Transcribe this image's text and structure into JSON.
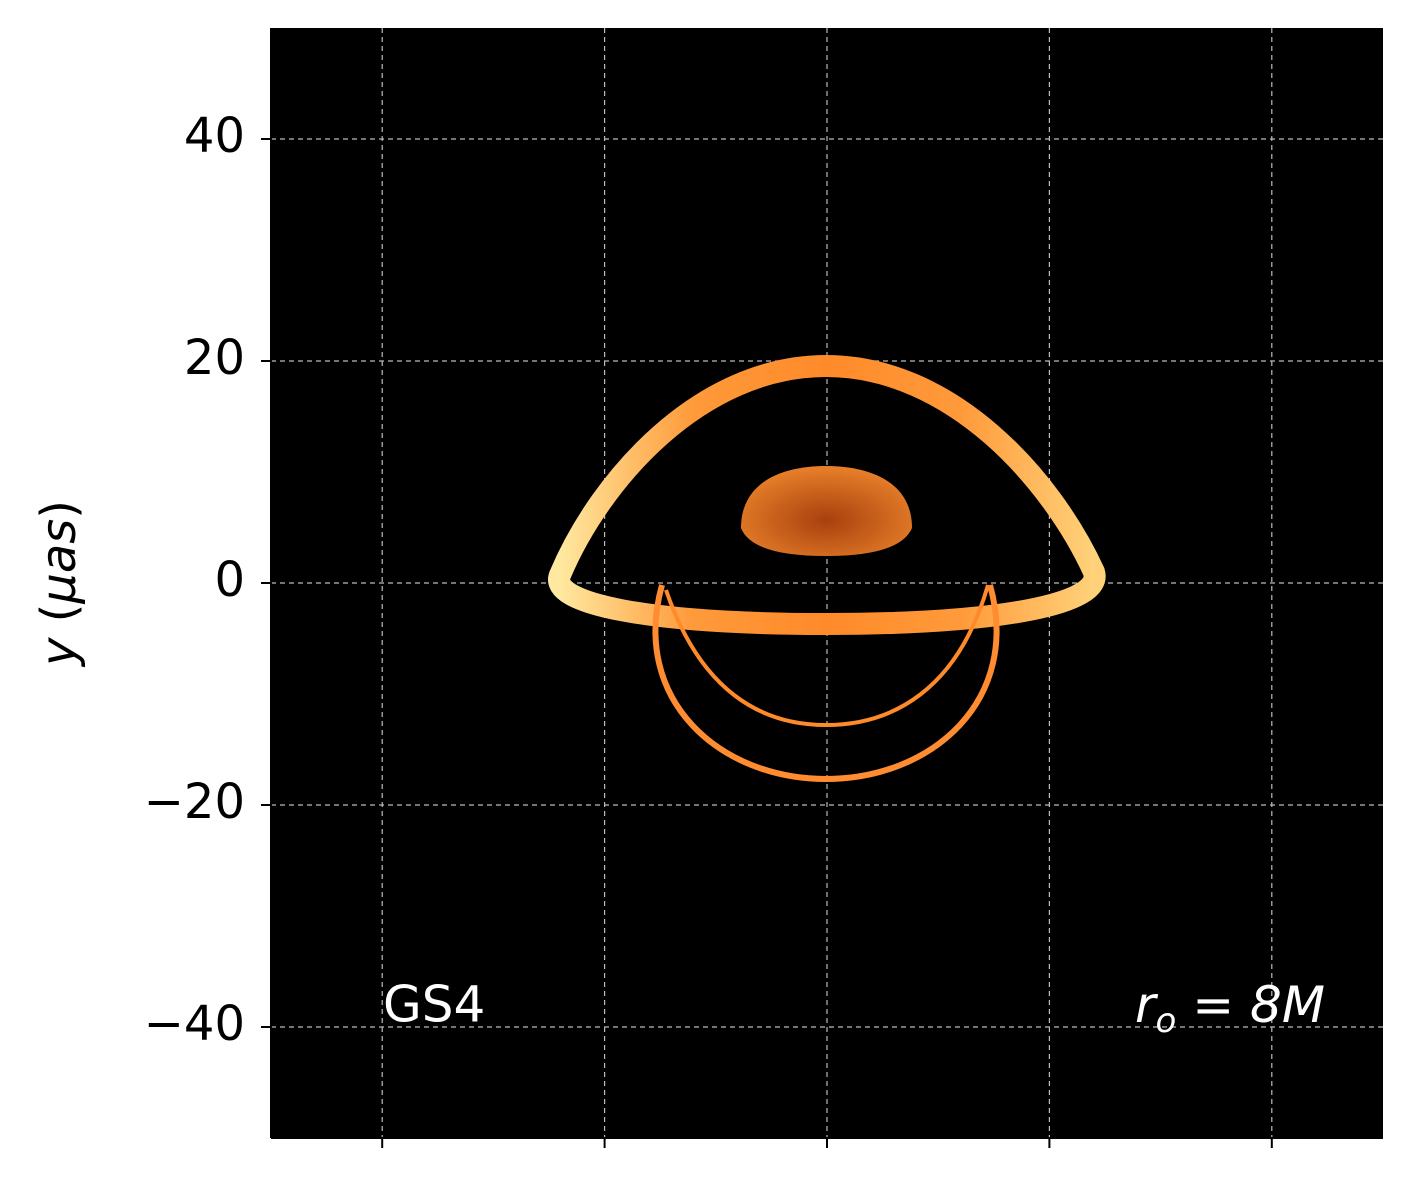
{
  "chart_data": {
    "type": "image",
    "ylabel": [
      "y",
      " (",
      "μas",
      ")"
    ],
    "xlim": [
      -50,
      50
    ],
    "ylim": [
      -50,
      50
    ],
    "xticks": [
      -40,
      -20,
      0,
      20,
      40
    ],
    "yticks": [
      {
        "value": -40,
        "label": "−40"
      },
      {
        "value": -20,
        "label": "−20"
      },
      0,
      20,
      40
    ],
    "grid": true,
    "annotation_left": "GS4",
    "annotation_right": [
      "r",
      "o",
      " = ",
      "8M"
    ]
  }
}
